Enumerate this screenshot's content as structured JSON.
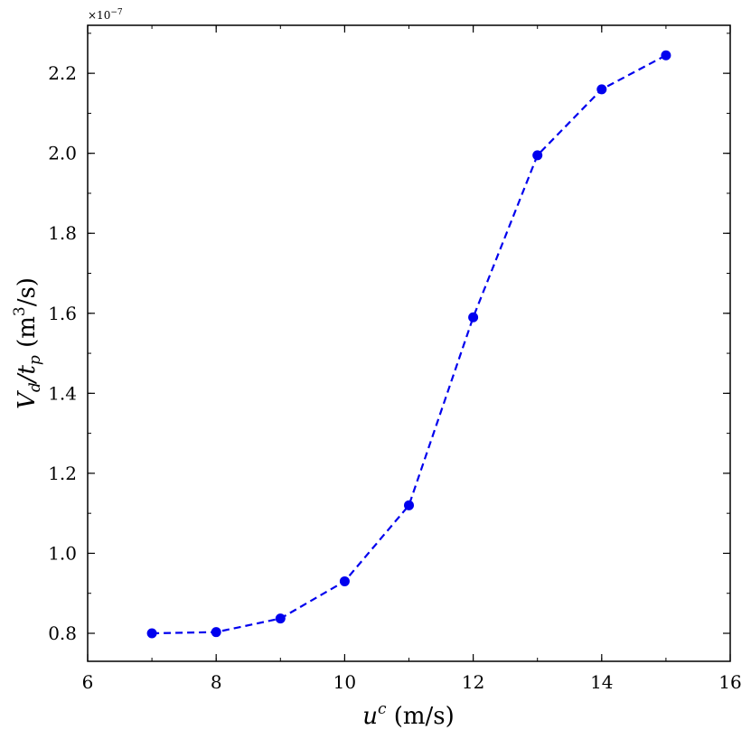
{
  "chart_data": {
    "type": "line",
    "title": "",
    "xlabel_base": "u",
    "xlabel_sup": "c",
    "xlabel_unit": " (m/s)",
    "ylabel_base": "V",
    "ylabel_sub1": "d",
    "ylabel_mid": "/t",
    "ylabel_sub2": "p",
    "ylabel_unit_pre": " (m",
    "ylabel_unit_sup": "3",
    "ylabel_unit_post": "/s)",
    "y_offset_base": "×10",
    "y_offset_exp": "−7",
    "xlim": [
      6,
      16
    ],
    "ylim": [
      0.73,
      2.32
    ],
    "xticks": [
      6,
      8,
      10,
      12,
      14,
      16
    ],
    "xtick_labels": [
      "6",
      "8",
      "10",
      "12",
      "14",
      "16"
    ],
    "yticks": [
      0.8,
      1.0,
      1.2,
      1.4,
      1.6,
      1.8,
      2.0,
      2.2
    ],
    "ytick_labels": [
      "0.8",
      "1.0",
      "1.2",
      "1.4",
      "1.6",
      "1.8",
      "2.0",
      "2.2"
    ],
    "grid": false,
    "series": [
      {
        "color": "#0000ee",
        "linestyle": "dashed",
        "marker": "circle",
        "x": [
          7,
          8,
          9,
          10,
          11,
          12,
          13,
          14,
          15
        ],
        "y": [
          0.8,
          0.803,
          0.837,
          0.93,
          1.12,
          1.59,
          1.995,
          2.16,
          2.245
        ]
      }
    ]
  }
}
